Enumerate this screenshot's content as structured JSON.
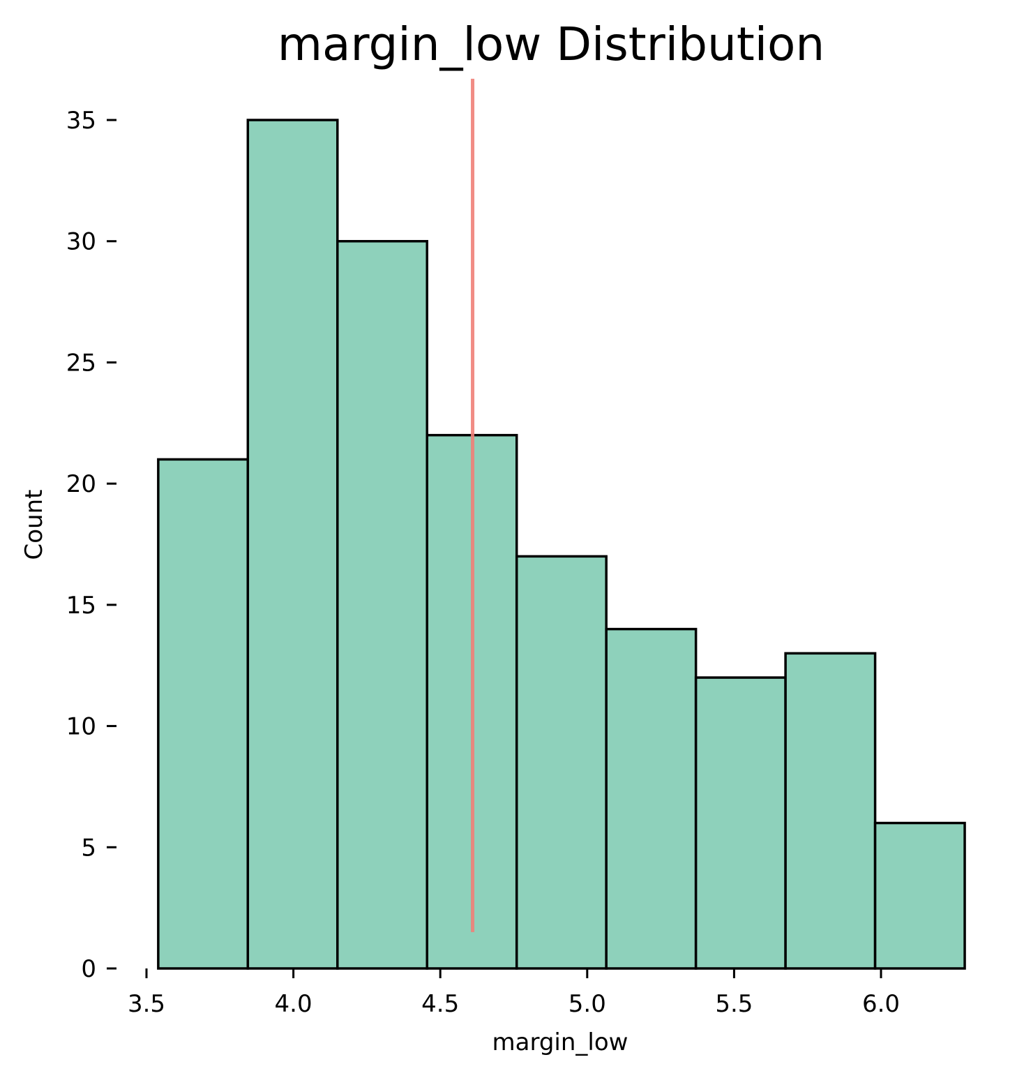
{
  "chart_data": {
    "type": "bar",
    "title": "margin_low Distribution",
    "xlabel": "margin_low",
    "ylabel": "Count",
    "xlim": [
      3.5,
      6.28
    ],
    "ylim": [
      0,
      36.5
    ],
    "x_ticks": [
      "3.5",
      "4.0",
      "4.5",
      "5.0",
      "5.5",
      "6.0"
    ],
    "x_tick_values": [
      3.5,
      4.0,
      4.5,
      5.0,
      5.5,
      6.0
    ],
    "y_ticks": [
      "0",
      "5",
      "10",
      "15",
      "20",
      "25",
      "30",
      "35"
    ],
    "y_tick_values": [
      0,
      5,
      10,
      15,
      20,
      25,
      30,
      35
    ],
    "bin_edges": [
      3.54,
      3.845,
      4.15,
      4.455,
      4.76,
      5.065,
      5.37,
      5.675,
      5.98,
      6.285
    ],
    "values": [
      21,
      35,
      30,
      22,
      17,
      14,
      12,
      13,
      6
    ],
    "bar_color": "#8ed1bb",
    "edge_color": "#000000",
    "reference_line": {
      "x": 4.61,
      "y_range": [
        1.5,
        36.7
      ],
      "color": "#f08078"
    },
    "grid": false,
    "legend": "none"
  }
}
